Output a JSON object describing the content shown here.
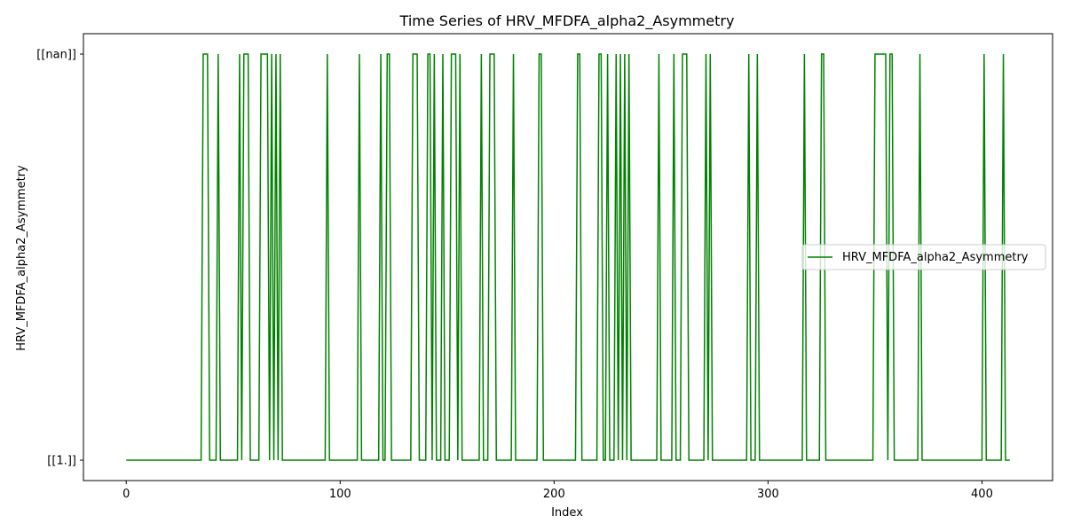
{
  "chart_data": {
    "type": "line",
    "title": "Time Series of HRV_MFDFA_alpha2_Asymmetry",
    "xlabel": "Index",
    "ylabel": "HRV_MFDFA_alpha2_Asymmetry",
    "categories": [
      "[[1.]]",
      "[[nan]]"
    ],
    "xlim": [
      -20,
      433
    ],
    "x_ticks": [
      0,
      100,
      200,
      300,
      400
    ],
    "grid": false,
    "legend": {
      "position": "center-right",
      "entries": [
        "HRV_MFDFA_alpha2_Asymmetry"
      ]
    },
    "series": [
      {
        "name": "HRV_MFDFA_alpha2_Asymmetry",
        "color": "#008000",
        "x_start": 0,
        "x_end": 413,
        "baseline": "[[1.]]",
        "nan_indices": [
          36,
          37,
          38,
          43,
          53,
          55,
          56,
          57,
          63,
          64,
          65,
          66,
          68,
          70,
          72,
          94,
          109,
          119,
          122,
          123,
          134,
          135,
          136,
          141,
          142,
          144,
          148,
          152,
          153,
          154,
          156,
          166,
          170,
          171,
          172,
          181,
          193,
          194,
          211,
          212,
          221,
          222,
          225,
          229,
          231,
          233,
          235,
          249,
          256,
          260,
          261,
          262,
          271,
          273,
          291,
          295,
          317,
          325,
          326,
          350,
          351,
          352,
          353,
          354,
          355,
          357,
          358,
          371,
          401,
          410
        ]
      }
    ]
  }
}
